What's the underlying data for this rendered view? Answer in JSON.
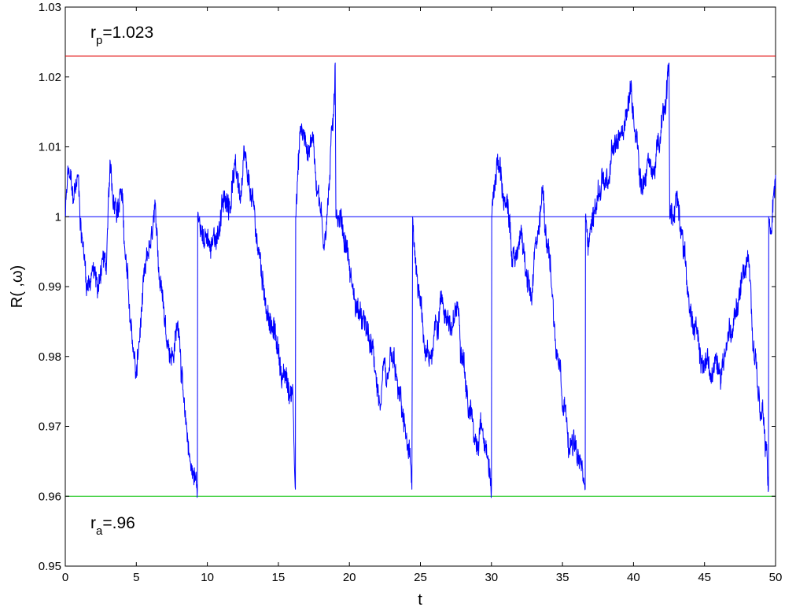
{
  "chart_data": {
    "type": "line",
    "title": "",
    "xlabel": "t",
    "ylabel": "R( ,ω)",
    "xlim": [
      0,
      50
    ],
    "ylim": [
      0.95,
      1.03
    ],
    "x_ticks": [
      "0",
      "5",
      "10",
      "15",
      "20",
      "25",
      "30",
      "35",
      "40",
      "45",
      "50"
    ],
    "y_ticks": [
      "0.95",
      "0.96",
      "0.97",
      "0.98",
      "0.99",
      "1",
      "1.01",
      "1.02",
      "1.03"
    ],
    "grid": false,
    "reference_lines": [
      {
        "y": 1.023,
        "color": "#e00000"
      },
      {
        "y": 1.0,
        "color": "#0000ff"
      },
      {
        "y": 0.96,
        "color": "#00c000"
      }
    ],
    "annotations": [
      {
        "base": "r",
        "sub": "p",
        "text": "=1.023",
        "x": 1.8,
        "y": 1.0265
      },
      {
        "base": "r",
        "sub": "a",
        "text": "=.96",
        "x": 1.8,
        "y": 0.9555
      }
    ],
    "series": [
      {
        "color": "#0000ff",
        "keypoints": [
          [
            0,
            1.0
          ],
          [
            0.25,
            1.007
          ],
          [
            0.5,
            1.003
          ],
          [
            0.9,
            1.006
          ],
          [
            1.2,
            0.997
          ],
          [
            1.4,
            0.993
          ],
          [
            1.6,
            0.99
          ],
          [
            1.9,
            0.993
          ],
          [
            2.3,
            0.989
          ],
          [
            2.6,
            0.994
          ],
          [
            2.9,
            0.993
          ],
          [
            3.2,
            1.007
          ],
          [
            3.5,
            1.002
          ],
          [
            3.9,
            1.004
          ],
          [
            4.2,
            0.995
          ],
          [
            4.5,
            0.987
          ],
          [
            4.8,
            0.981
          ],
          [
            5.0,
            0.977
          ],
          [
            5.2,
            0.982
          ],
          [
            5.6,
            0.992
          ],
          [
            6.0,
            0.996
          ],
          [
            6.4,
            0.999
          ],
          [
            6.8,
            0.99
          ],
          [
            7.2,
            0.982
          ],
          [
            7.6,
            0.98
          ],
          [
            8.0,
            0.984
          ],
          [
            8.4,
            0.972
          ],
          [
            8.8,
            0.965
          ],
          [
            9.0,
            0.963
          ],
          [
            9.3,
            0.961
          ],
          [
            9.32,
            1.0
          ],
          [
            9.6,
            0.998
          ],
          [
            10.2,
            0.995
          ],
          [
            10.8,
            0.998
          ],
          [
            11.3,
            1.002
          ],
          [
            11.8,
            1.006
          ],
          [
            12.3,
            1.003
          ],
          [
            12.8,
            1.006
          ],
          [
            13.4,
            0.998
          ],
          [
            14.0,
            0.989
          ],
          [
            14.5,
            0.984
          ],
          [
            15.0,
            0.981
          ],
          [
            15.4,
            0.978
          ],
          [
            15.8,
            0.974
          ],
          [
            16.0,
            0.976
          ],
          [
            16.2,
            0.961
          ],
          [
            16.22,
            1.0
          ],
          [
            16.6,
            1.013
          ],
          [
            17.0,
            1.009
          ],
          [
            17.4,
            1.012
          ],
          [
            17.8,
            1.004
          ],
          [
            18.2,
            0.996
          ],
          [
            18.6,
            1.005
          ],
          [
            18.9,
            1.015
          ],
          [
            19.0,
            1.022
          ],
          [
            19.05,
            1.0
          ],
          [
            19.4,
            1.0
          ],
          [
            19.8,
            0.996
          ],
          [
            20.2,
            0.99
          ],
          [
            20.8,
            0.986
          ],
          [
            21.4,
            0.982
          ],
          [
            21.8,
            0.978
          ],
          [
            22.2,
            0.973
          ],
          [
            22.6,
            0.976
          ],
          [
            23.0,
            0.98
          ],
          [
            23.4,
            0.975
          ],
          [
            23.8,
            0.971
          ],
          [
            24.1,
            0.967
          ],
          [
            24.4,
            0.961
          ],
          [
            24.45,
            1.0
          ],
          [
            24.8,
            0.99
          ],
          [
            25.2,
            0.982
          ],
          [
            25.6,
            0.979
          ],
          [
            26.0,
            0.985
          ],
          [
            26.4,
            0.988
          ],
          [
            26.8,
            0.986
          ],
          [
            27.2,
            0.983
          ],
          [
            27.6,
            0.987
          ],
          [
            28.0,
            0.981
          ],
          [
            28.4,
            0.972
          ],
          [
            28.8,
            0.968
          ],
          [
            29.2,
            0.971
          ],
          [
            29.6,
            0.967
          ],
          [
            30.0,
            0.961
          ],
          [
            30.02,
            1.0
          ],
          [
            30.4,
            1.008
          ],
          [
            30.8,
            1.003
          ],
          [
            31.2,
            1.0
          ],
          [
            31.6,
            0.994
          ],
          [
            32.0,
            0.998
          ],
          [
            32.4,
            0.992
          ],
          [
            32.8,
            0.988
          ],
          [
            33.2,
            0.996
          ],
          [
            33.6,
            1.004
          ],
          [
            34.0,
            0.996
          ],
          [
            34.4,
            0.985
          ],
          [
            34.8,
            0.979
          ],
          [
            35.2,
            0.973
          ],
          [
            35.6,
            0.968
          ],
          [
            36.0,
            0.966
          ],
          [
            36.4,
            0.964
          ],
          [
            36.6,
            0.961
          ],
          [
            36.62,
            1.0
          ],
          [
            37.0,
            0.999
          ],
          [
            37.4,
            1.002
          ],
          [
            37.8,
            1.006
          ],
          [
            38.2,
            1.004
          ],
          [
            38.6,
            1.01
          ],
          [
            39.0,
            1.012
          ],
          [
            39.4,
            1.014
          ],
          [
            39.8,
            1.019
          ],
          [
            40.2,
            1.012
          ],
          [
            40.6,
            1.004
          ],
          [
            41.0,
            1.008
          ],
          [
            41.4,
            1.006
          ],
          [
            41.8,
            1.01
          ],
          [
            42.2,
            1.015
          ],
          [
            42.5,
            1.022
          ],
          [
            42.55,
            1.0
          ],
          [
            43.0,
            1.003
          ],
          [
            43.4,
            0.998
          ],
          [
            43.8,
            0.99
          ],
          [
            44.2,
            0.984
          ],
          [
            44.6,
            0.981
          ],
          [
            45.0,
            0.979
          ],
          [
            45.4,
            0.977
          ],
          [
            45.8,
            0.98
          ],
          [
            46.2,
            0.978
          ],
          [
            46.6,
            0.982
          ],
          [
            47.0,
            0.984
          ],
          [
            47.4,
            0.988
          ],
          [
            47.8,
            0.992
          ],
          [
            48.2,
            0.991
          ],
          [
            48.6,
            0.98
          ],
          [
            48.9,
            0.972
          ],
          [
            49.2,
            0.969
          ],
          [
            49.4,
            0.966
          ],
          [
            49.5,
            0.961
          ],
          [
            49.52,
            1.0
          ],
          [
            49.7,
            0.998
          ],
          [
            49.85,
            1.003
          ],
          [
            50.0,
            1.006
          ]
        ]
      }
    ]
  }
}
